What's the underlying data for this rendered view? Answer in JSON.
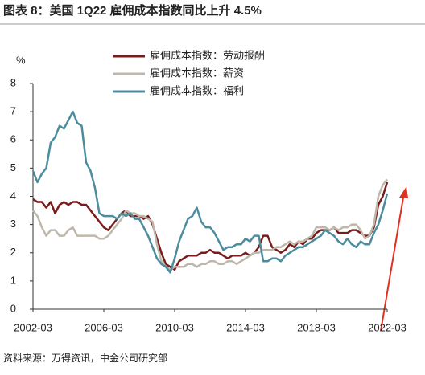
{
  "chart_data": {
    "type": "line",
    "title": "图表 8：美国 1Q22 雇佣成本指数同比上升 4.5%",
    "y_label": "%",
    "source": "资料来源：万得资讯，中金公司研究部",
    "categories": [
      "2002-03",
      null,
      null,
      null,
      null,
      null,
      null,
      null,
      null,
      null,
      null,
      null,
      null,
      null,
      null,
      null,
      "2006-03",
      null,
      null,
      null,
      null,
      null,
      null,
      null,
      null,
      null,
      null,
      null,
      null,
      null,
      null,
      null,
      "2010-03",
      null,
      null,
      null,
      null,
      null,
      null,
      null,
      null,
      null,
      null,
      null,
      null,
      null,
      null,
      null,
      "2014-03",
      null,
      null,
      null,
      null,
      null,
      null,
      null,
      null,
      null,
      null,
      null,
      null,
      null,
      null,
      null,
      "2018-03",
      null,
      null,
      null,
      null,
      null,
      null,
      null,
      null,
      null,
      null,
      null,
      null,
      null,
      null,
      null,
      "2022-03"
    ],
    "series": [
      {
        "name": "雇佣成本指数：劳动报酬",
        "color": "#7a1c1c",
        "values": [
          3.9,
          3.8,
          3.8,
          3.6,
          3.8,
          3.4,
          3.7,
          3.8,
          3.7,
          3.8,
          3.8,
          3.7,
          3.7,
          3.5,
          3.3,
          3.1,
          2.9,
          2.8,
          3.0,
          3.2,
          3.4,
          3.5,
          3.3,
          3.3,
          3.3,
          3.2,
          3.3,
          3.0,
          2.5,
          2.0,
          1.6,
          1.5,
          1.4,
          1.7,
          1.8,
          1.9,
          1.9,
          1.9,
          2.0,
          2.0,
          2.1,
          2.0,
          2.0,
          1.9,
          1.8,
          1.9,
          1.9,
          1.9,
          2.0,
          1.9,
          2.0,
          2.2,
          2.6,
          2.6,
          2.2,
          2.1,
          2.0,
          2.1,
          2.3,
          2.2,
          2.4,
          2.3,
          2.5,
          2.5,
          2.7,
          2.8,
          2.8,
          2.8,
          2.9,
          2.7,
          2.7,
          2.7,
          2.8,
          2.8,
          2.7,
          2.6,
          2.6,
          2.9,
          3.7,
          4.0,
          4.5
        ]
      },
      {
        "name": "雇佣成本指数：薪资",
        "color": "#bdb8ab",
        "values": [
          3.5,
          3.3,
          2.9,
          2.6,
          2.8,
          2.8,
          2.6,
          2.6,
          2.8,
          2.9,
          2.6,
          2.6,
          2.6,
          2.6,
          2.6,
          2.5,
          2.5,
          2.6,
          2.8,
          3.0,
          3.2,
          3.5,
          3.4,
          3.4,
          3.3,
          3.3,
          3.2,
          3.1,
          2.3,
          1.7,
          1.5,
          1.4,
          1.5,
          1.5,
          1.5,
          1.6,
          1.6,
          1.5,
          1.6,
          1.6,
          1.7,
          1.7,
          1.6,
          1.6,
          1.7,
          1.7,
          1.6,
          1.7,
          1.8,
          1.9,
          2.0,
          2.0,
          2.1,
          2.1,
          2.1,
          2.2,
          2.2,
          2.3,
          2.4,
          2.3,
          2.4,
          2.4,
          2.5,
          2.6,
          2.9,
          2.9,
          2.9,
          2.8,
          2.9,
          2.8,
          2.9,
          2.9,
          3.0,
          3.0,
          2.8,
          2.5,
          2.6,
          3.0,
          4.0,
          4.4,
          4.6
        ]
      },
      {
        "name": "雇佣成本指数：福利",
        "color": "#4b8d9e",
        "values": [
          4.9,
          4.5,
          4.8,
          5.0,
          5.9,
          6.1,
          6.5,
          6.4,
          6.7,
          7.0,
          6.6,
          6.5,
          5.2,
          4.9,
          4.3,
          3.4,
          3.3,
          3.3,
          3.3,
          3.2,
          3.4,
          3.3,
          3.4,
          3.2,
          3.2,
          2.9,
          2.6,
          2.2,
          1.8,
          1.6,
          1.5,
          1.3,
          1.8,
          2.4,
          2.8,
          3.2,
          3.3,
          3.6,
          3.1,
          2.9,
          2.9,
          2.7,
          2.4,
          2.1,
          2.2,
          2.2,
          2.3,
          2.3,
          2.5,
          2.4,
          2.6,
          2.6,
          1.7,
          1.7,
          1.8,
          1.8,
          1.7,
          1.9,
          2.0,
          2.1,
          2.2,
          2.2,
          2.3,
          2.4,
          2.5,
          2.6,
          2.8,
          2.7,
          2.6,
          2.4,
          2.3,
          2.5,
          2.3,
          2.2,
          2.4,
          2.3,
          2.3,
          2.7,
          3.0,
          3.5,
          4.1
        ]
      }
    ],
    "ylim": [
      0,
      8
    ],
    "yticks": [
      0,
      1,
      2,
      3,
      4,
      5,
      6,
      7,
      8
    ],
    "grid": false
  }
}
